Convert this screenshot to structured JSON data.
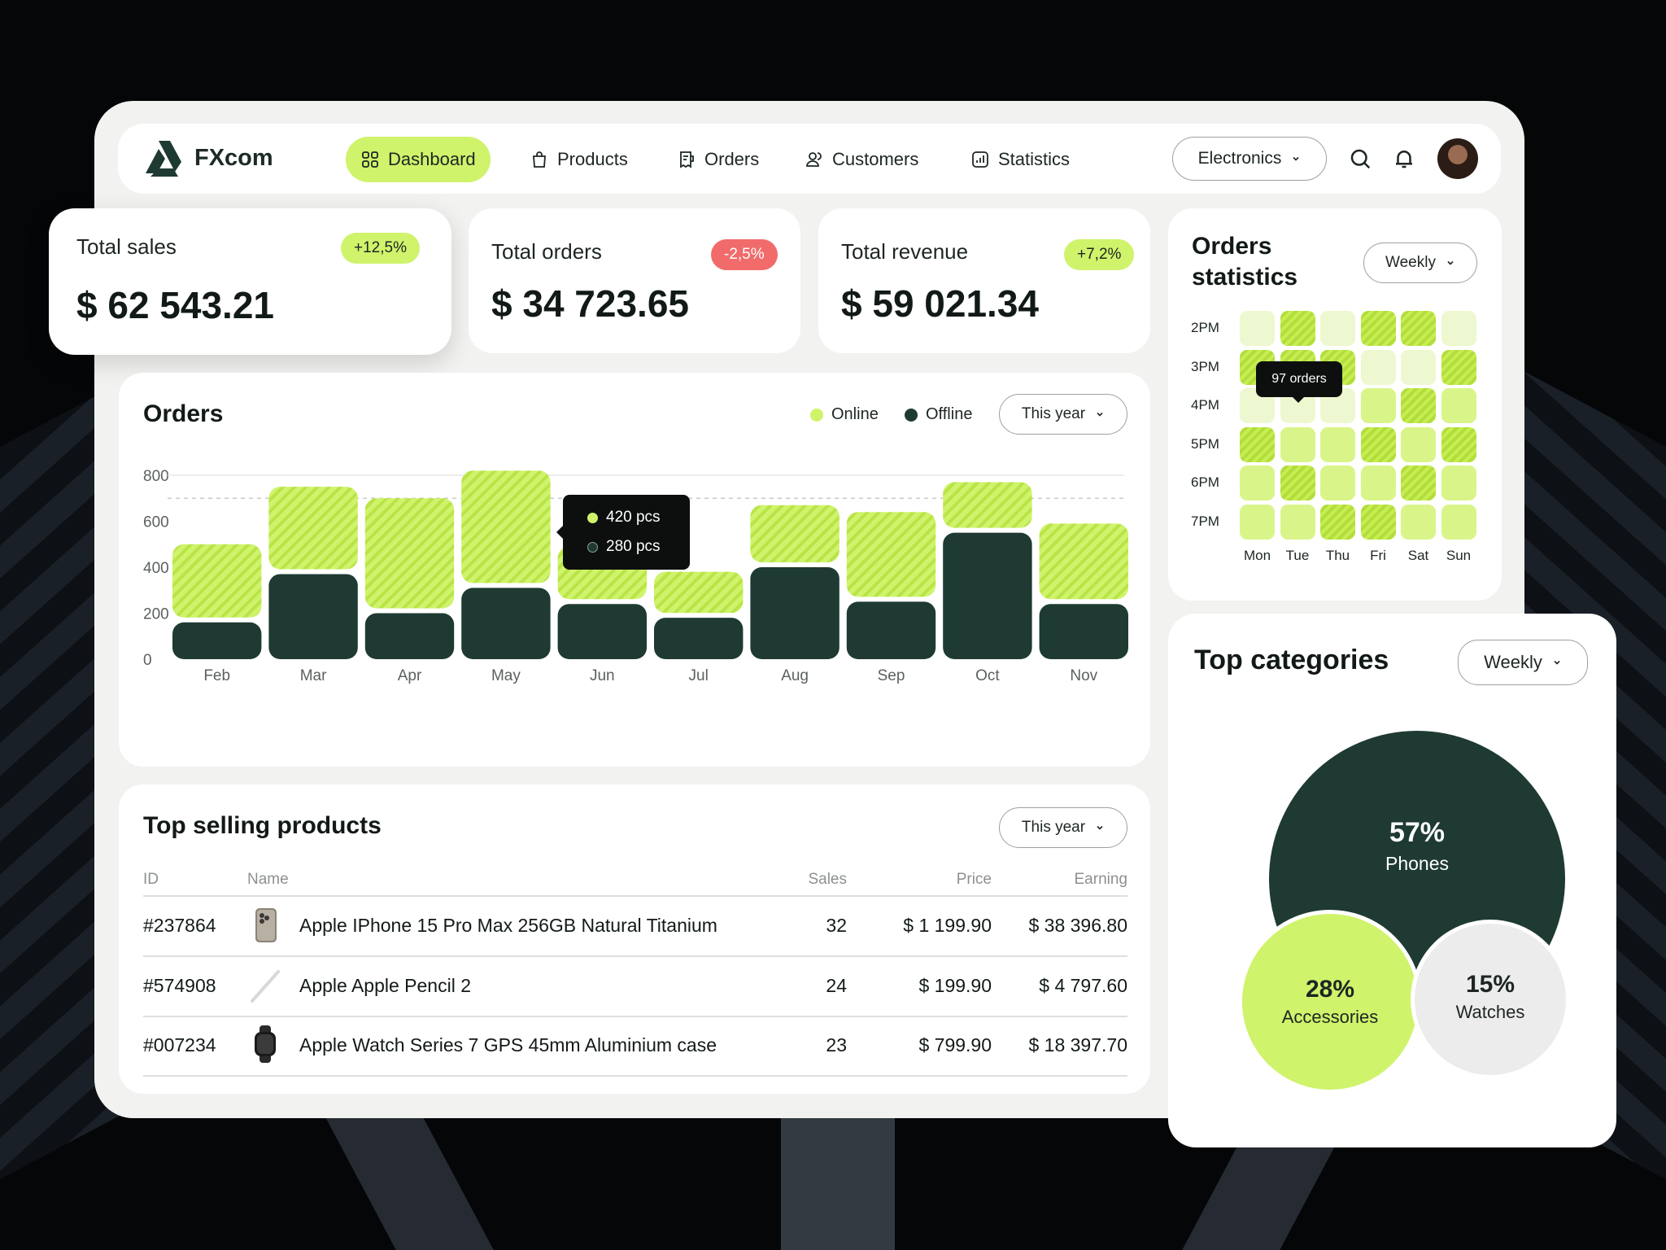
{
  "app": {
    "name": "FXcom"
  },
  "nav": {
    "items": [
      {
        "label": "Dashboard",
        "icon": "grid-icon",
        "active": true
      },
      {
        "label": "Products",
        "icon": "bag-icon",
        "active": false
      },
      {
        "label": "Orders",
        "icon": "receipt-icon",
        "active": false
      },
      {
        "label": "Customers",
        "icon": "users-icon",
        "active": false
      },
      {
        "label": "Statistics",
        "icon": "chart-icon",
        "active": false
      }
    ],
    "category": "Electronics"
  },
  "stats": [
    {
      "label": "Total sales",
      "value": "$ 62 543.21",
      "change": "+12,5%",
      "trend": "up"
    },
    {
      "label": "Total orders",
      "value": "$ 34 723.65",
      "change": "-2,5%",
      "trend": "down"
    },
    {
      "label": "Total revenue",
      "value": "$ 59 021.34",
      "change": "+7,2%",
      "trend": "up"
    }
  ],
  "orders": {
    "title": "Orders",
    "legend": [
      "Online",
      "Offline"
    ],
    "period": "This year",
    "tooltip": {
      "online": "420 pcs",
      "offline": "280 pcs"
    }
  },
  "chart_data": {
    "type": "bar",
    "stacked": true,
    "categories": [
      "Feb",
      "Mar",
      "Apr",
      "May",
      "Jun",
      "Jul",
      "Aug",
      "Sep",
      "Oct",
      "Nov"
    ],
    "series": [
      {
        "name": "Offline",
        "color": "#1e3a33",
        "values": [
          160,
          370,
          200,
          310,
          240,
          180,
          400,
          250,
          550,
          240
        ]
      },
      {
        "name": "Online",
        "color": "#cff36b",
        "values": [
          340,
          380,
          500,
          510,
          250,
          200,
          270,
          390,
          220,
          350
        ]
      }
    ],
    "yticks": [
      0,
      200,
      400,
      600,
      800
    ],
    "ylim": [
      0,
      800
    ],
    "reference_line": 700,
    "grid": true
  },
  "top_products": {
    "title": "Top selling products",
    "period": "This year",
    "columns": [
      "ID",
      "Name",
      "Sales",
      "Price",
      "Earning"
    ],
    "rows": [
      {
        "id": "#237864",
        "name": "Apple IPhone 15 Pro Max 256GB Natural Titanium",
        "sales": "32",
        "price": "$ 1 199.90",
        "earning": "$ 38 396.80",
        "thumb": "phone-thumb"
      },
      {
        "id": "#574908",
        "name": "Apple Apple Pencil 2",
        "sales": "24",
        "price": "$ 199.90",
        "earning": "$ 4 797.60",
        "thumb": "pencil-thumb"
      },
      {
        "id": "#007234",
        "name": "Apple Watch Series 7 GPS 45mm Aluminium case",
        "sales": "23",
        "price": "$ 799.90",
        "earning": "$ 18 397.70",
        "thumb": "watch-thumb"
      }
    ]
  },
  "orders_statistics": {
    "title_line1": "Orders",
    "title_line2": "statistics",
    "period": "Weekly",
    "hours": [
      "2PM",
      "3PM",
      "4PM",
      "5PM",
      "6PM",
      "7PM"
    ],
    "days": [
      "Mon",
      "Tue",
      "Thu",
      "Fri",
      "Sat",
      "Sun"
    ],
    "levels": [
      [
        1,
        3,
        1,
        3,
        3,
        1
      ],
      [
        3,
        3,
        3,
        1,
        1,
        3
      ],
      [
        1,
        1,
        1,
        2,
        3,
        2
      ],
      [
        3,
        2,
        2,
        3,
        2,
        3
      ],
      [
        2,
        3,
        2,
        2,
        3,
        2
      ],
      [
        2,
        2,
        3,
        3,
        2,
        2
      ]
    ],
    "tooltip": "97 orders"
  },
  "top_categories": {
    "title": "Top categories",
    "period": "Weekly",
    "items": [
      {
        "percent": "57%",
        "label": "Phones",
        "color": "#1e3a33"
      },
      {
        "percent": "28%",
        "label": "Accessories",
        "color": "#cff36b"
      },
      {
        "percent": "15%",
        "label": "Watches",
        "color": "#ececec"
      }
    ]
  }
}
